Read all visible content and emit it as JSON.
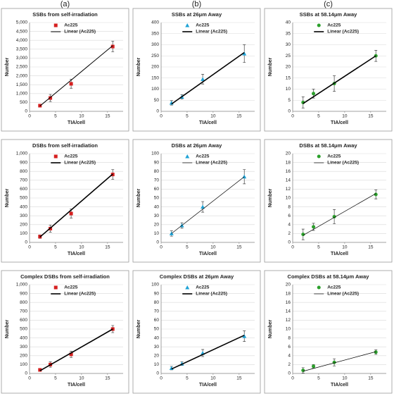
{
  "column_labels": [
    "(a)",
    "(b)",
    "(c)"
  ],
  "chart_data": [
    {
      "type": "scatter",
      "title": "SSBs from self-irradiation",
      "x_label": "TIA/cell",
      "y_label": "Number",
      "xlim": [
        0,
        18
      ],
      "xticks": [
        0,
        5,
        10,
        15
      ],
      "ylim": [
        0,
        5000
      ],
      "yticks": [
        0,
        500,
        {
          "value": 1000,
          "label": "1,000"
        },
        {
          "value": 1500,
          "label": "1,500"
        },
        {
          "value": 2000,
          "label": "2,000"
        },
        {
          "value": 2500,
          "label": "2,500"
        },
        {
          "value": 3000,
          "label": "3,000"
        },
        {
          "value": 3500,
          "label": "3,500"
        },
        {
          "value": 4000,
          "label": "4,000"
        },
        {
          "value": 4500,
          "label": "4,500"
        },
        {
          "value": 5000,
          "label": "5,000"
        }
      ],
      "grid": true,
      "series": [
        {
          "name": "Ac225",
          "color": "#d62020",
          "marker": "square",
          "x": [
            2,
            4,
            8,
            16
          ],
          "values": [
            320,
            750,
            1550,
            3650
          ],
          "errors": [
            80,
            200,
            250,
            300
          ]
        },
        {
          "name": "Linear (Ac225)",
          "color": "#000000",
          "line_width": 1,
          "x": [
            2,
            16
          ],
          "values": [
            300,
            3700
          ]
        }
      ]
    },
    {
      "type": "scatter",
      "title": "SSBs at 26μm Away",
      "x_label": "TIA/cell",
      "y_label": "Number",
      "xlim": [
        0,
        18
      ],
      "xticks": [
        0,
        5,
        10,
        15
      ],
      "ylim": [
        0,
        400
      ],
      "yticks": [
        0,
        50,
        100,
        150,
        200,
        250,
        300,
        350,
        400
      ],
      "grid": true,
      "series": [
        {
          "name": "Ac225",
          "color": "#1fa3d6",
          "marker": "triangle",
          "x": [
            2,
            4,
            8,
            16
          ],
          "values": [
            38,
            65,
            145,
            260
          ],
          "errors": [
            10,
            10,
            22,
            40
          ]
        },
        {
          "name": "Linear (Ac225)",
          "color": "#000000",
          "line_width": 1.6,
          "x": [
            2,
            16
          ],
          "values": [
            33,
            265
          ]
        }
      ]
    },
    {
      "type": "scatter",
      "title": "SSBs at 58.14μm Away",
      "x_label": "TIA/cell",
      "y_label": "Number",
      "xlim": [
        0,
        18
      ],
      "xticks": [
        0,
        5,
        10,
        15
      ],
      "ylim": [
        0,
        40
      ],
      "yticks": [
        0,
        5,
        10,
        15,
        20,
        25,
        30,
        35,
        40
      ],
      "grid": true,
      "series": [
        {
          "name": "Ac225",
          "color": "#2ca02c",
          "marker": "circle",
          "x": [
            2,
            4,
            8,
            16
          ],
          "values": [
            4,
            8,
            12.5,
            25
          ],
          "errors": [
            2.5,
            2,
            3.5,
            2.5
          ]
        },
        {
          "name": "Linear (Ac225)",
          "color": "#000000",
          "line_width": 1.6,
          "x": [
            2,
            16
          ],
          "values": [
            3.5,
            25
          ]
        }
      ]
    },
    {
      "type": "scatter",
      "title": "DSBs from self-irradiation",
      "x_label": "TIA/cell",
      "y_label": "Number",
      "xlim": [
        0,
        18
      ],
      "xticks": [
        0,
        5,
        10,
        15
      ],
      "ylim": [
        0,
        1000
      ],
      "yticks": [
        0,
        100,
        200,
        300,
        400,
        500,
        600,
        700,
        800,
        900,
        {
          "value": 1000,
          "label": "1,000"
        }
      ],
      "grid": true,
      "series": [
        {
          "name": "Ac225",
          "color": "#d62020",
          "marker": "square",
          "x": [
            2,
            4,
            8,
            16
          ],
          "values": [
            65,
            155,
            325,
            765
          ],
          "errors": [
            20,
            40,
            50,
            55
          ]
        },
        {
          "name": "Linear (Ac225)",
          "color": "#000000",
          "line_width": 1.6,
          "x": [
            2,
            16
          ],
          "values": [
            60,
            770
          ]
        }
      ]
    },
    {
      "type": "scatter",
      "title": "DSBs at 26μm Away",
      "x_label": "TIA/cell",
      "y_label": "Number",
      "xlim": [
        0,
        18
      ],
      "xticks": [
        0,
        5,
        10,
        15
      ],
      "ylim": [
        0,
        100
      ],
      "yticks": [
        0,
        10,
        20,
        30,
        40,
        50,
        60,
        70,
        80,
        90,
        100
      ],
      "grid": true,
      "series": [
        {
          "name": "Ac225",
          "color": "#1fa3d6",
          "marker": "triangle",
          "x": [
            2,
            4,
            8,
            16
          ],
          "values": [
            10,
            19,
            40,
            74
          ],
          "errors": [
            3,
            3,
            6,
            8
          ]
        },
        {
          "name": "Linear (Ac225)",
          "color": "#000000",
          "line_width": 0.7,
          "x": [
            2,
            16
          ],
          "values": [
            10,
            74
          ]
        }
      ]
    },
    {
      "type": "scatter",
      "title": "DSBs at 58.14μm Away",
      "x_label": "TIA/cell",
      "y_label": "Number",
      "xlim": [
        0,
        18
      ],
      "xticks": [
        0,
        5,
        10,
        15
      ],
      "ylim": [
        0,
        20
      ],
      "yticks": [
        0,
        2,
        4,
        6,
        8,
        10,
        12,
        14,
        16,
        18,
        20
      ],
      "grid": true,
      "series": [
        {
          "name": "Ac225",
          "color": "#2ca02c",
          "marker": "circle",
          "x": [
            2,
            4,
            8,
            16
          ],
          "values": [
            1.8,
            3.5,
            5.8,
            10.8
          ],
          "errors": [
            1.2,
            0.8,
            1.6,
            1
          ]
        },
        {
          "name": "Linear (Ac225)",
          "color": "#000000",
          "line_width": 0.7,
          "x": [
            2,
            16
          ],
          "values": [
            1.6,
            11
          ]
        }
      ]
    },
    {
      "type": "scatter",
      "title": "Complex DSBs from self-irradiation",
      "x_label": "TIA/cell",
      "y_label": "Number",
      "xlim": [
        0,
        18
      ],
      "xticks": [
        0,
        5,
        10,
        15
      ],
      "ylim": [
        0,
        1000
      ],
      "yticks": [
        0,
        100,
        200,
        300,
        400,
        500,
        600,
        700,
        800,
        900,
        {
          "value": 1000,
          "label": "1,000"
        }
      ],
      "grid": true,
      "series": [
        {
          "name": "Ac225",
          "color": "#d62020",
          "marker": "square",
          "x": [
            2,
            4,
            8,
            16
          ],
          "values": [
            40,
            100,
            215,
            500
          ],
          "errors": [
            10,
            30,
            35,
            40
          ]
        },
        {
          "name": "Linear (Ac225)",
          "color": "#000000",
          "line_width": 1.6,
          "x": [
            2,
            16
          ],
          "values": [
            30,
            500
          ]
        }
      ]
    },
    {
      "type": "scatter",
      "title": "Complex DSBs at 26μm Away",
      "x_label": "TIA/cell",
      "y_label": "Number",
      "xlim": [
        0,
        18
      ],
      "xticks": [
        0,
        5,
        10,
        15
      ],
      "ylim": [
        0,
        100
      ],
      "yticks": [
        0,
        10,
        20,
        30,
        40,
        50,
        60,
        70,
        80,
        90,
        100
      ],
      "grid": true,
      "series": [
        {
          "name": "Ac225",
          "color": "#1fa3d6",
          "marker": "triangle",
          "x": [
            2,
            4,
            8,
            16
          ],
          "values": [
            6,
            11,
            23,
            42
          ],
          "errors": [
            2,
            2,
            4,
            6
          ]
        },
        {
          "name": "Linear (Ac225)",
          "color": "#000000",
          "line_width": 1.6,
          "x": [
            2,
            16
          ],
          "values": [
            5,
            43
          ]
        }
      ]
    },
    {
      "type": "scatter",
      "title": "Complex DSBs at 58.14μm Away",
      "x_label": "TIA/cell",
      "y_label": "Number",
      "xlim": [
        0,
        18
      ],
      "xticks": [
        0,
        5,
        10,
        15
      ],
      "ylim": [
        0,
        20
      ],
      "yticks": [
        0,
        2,
        4,
        6,
        8,
        10,
        12,
        14,
        16,
        18,
        20
      ],
      "grid": true,
      "series": [
        {
          "name": "Ac225",
          "color": "#2ca02c",
          "marker": "circle",
          "x": [
            2,
            4,
            8,
            16
          ],
          "values": [
            0.7,
            1.6,
            2.5,
            4.8
          ],
          "errors": [
            0.6,
            0.4,
            0.8,
            0.5
          ]
        },
        {
          "name": "Linear (Ac225)",
          "color": "#000000",
          "line_width": 0.7,
          "x": [
            2,
            16
          ],
          "values": [
            0.5,
            4.9
          ]
        }
      ]
    }
  ]
}
